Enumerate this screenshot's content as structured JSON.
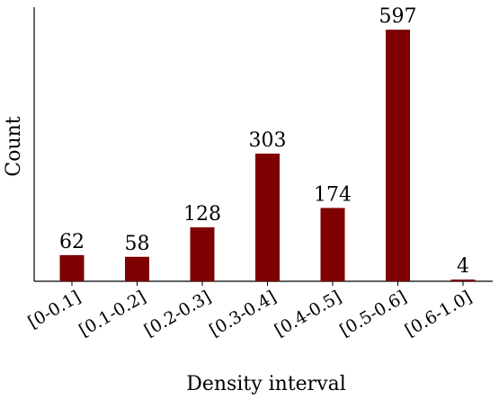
{
  "chart_data": {
    "type": "bar",
    "xlabel": "Density interval",
    "ylabel": "Count",
    "categories": [
      "[0-0.1]",
      "[0.1-0.2]",
      "[0.2-0.3]",
      "[0.3-0.4]",
      "[0.4-0.5]",
      "[0.5-0.6]",
      "[0.6-1.0]"
    ],
    "values": [
      62,
      58,
      128,
      303,
      174,
      597,
      4
    ],
    "value_labels": [
      "62",
      "58",
      "128",
      "303",
      "174",
      "597",
      "4"
    ],
    "ylim": [
      0,
      620
    ],
    "grid": false,
    "colors": {
      "bar": "#7f0000",
      "axis": "#000000"
    }
  }
}
